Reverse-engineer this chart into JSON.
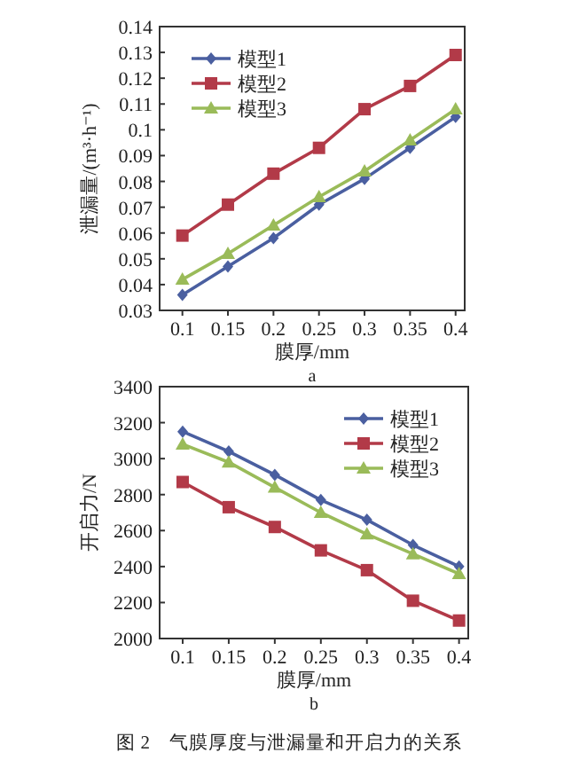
{
  "chart_data": [
    {
      "type": "line",
      "xlabel": "膜厚/mm",
      "ylabel": "泄漏量/(m³·h⁻¹)",
      "annotations": [
        "a"
      ],
      "x": [
        0.1,
        0.15,
        0.2,
        0.25,
        0.3,
        0.35,
        0.4
      ],
      "xlim": [
        0.075,
        0.41
      ],
      "xticks": [
        0.1,
        0.15,
        0.2,
        0.25,
        0.3,
        0.35,
        0.4
      ],
      "ylim": [
        0.03,
        0.14
      ],
      "yticks": [
        0.03,
        0.04,
        0.05,
        0.06,
        0.07,
        0.08,
        0.09,
        0.1,
        0.11,
        0.12,
        0.13,
        0.14
      ],
      "grid": false,
      "legend": "top left",
      "series": [
        {
          "name": "模型1",
          "color": "#4a5fa0",
          "marker": "diamond",
          "values": [
            0.036,
            0.047,
            0.058,
            0.071,
            0.081,
            0.093,
            0.105
          ]
        },
        {
          "name": "模型2",
          "color": "#b23a48",
          "marker": "square",
          "values": [
            0.059,
            0.071,
            0.083,
            0.093,
            0.108,
            0.117,
            0.129
          ]
        },
        {
          "name": "模型3",
          "color": "#9abb59",
          "marker": "triangle",
          "values": [
            0.042,
            0.052,
            0.063,
            0.074,
            0.084,
            0.096,
            0.108
          ]
        }
      ]
    },
    {
      "type": "line",
      "xlabel": "膜厚/mm",
      "ylabel": "开启力/N",
      "annotations": [
        "b",
        "图 2　气膜厚度与泄漏量和开启力的关系"
      ],
      "x": [
        0.1,
        0.15,
        0.2,
        0.25,
        0.3,
        0.35,
        0.4
      ],
      "xlim": [
        0.075,
        0.41
      ],
      "xticks": [
        0.1,
        0.15,
        0.2,
        0.25,
        0.3,
        0.35,
        0.4
      ],
      "ylim": [
        2000,
        3400
      ],
      "yticks": [
        2000,
        2200,
        2400,
        2600,
        2800,
        3000,
        3200,
        3400
      ],
      "grid": false,
      "legend": "top right",
      "series": [
        {
          "name": "模型1",
          "color": "#4a5fa0",
          "marker": "diamond",
          "values": [
            3150,
            3040,
            2910,
            2770,
            2660,
            2520,
            2400
          ]
        },
        {
          "name": "模型2",
          "color": "#b23a48",
          "marker": "square",
          "values": [
            2870,
            2730,
            2620,
            2490,
            2380,
            2210,
            2100
          ]
        },
        {
          "name": "模型3",
          "color": "#9abb59",
          "marker": "triangle",
          "values": [
            3080,
            2980,
            2840,
            2700,
            2580,
            2470,
            2360
          ]
        }
      ]
    }
  ]
}
